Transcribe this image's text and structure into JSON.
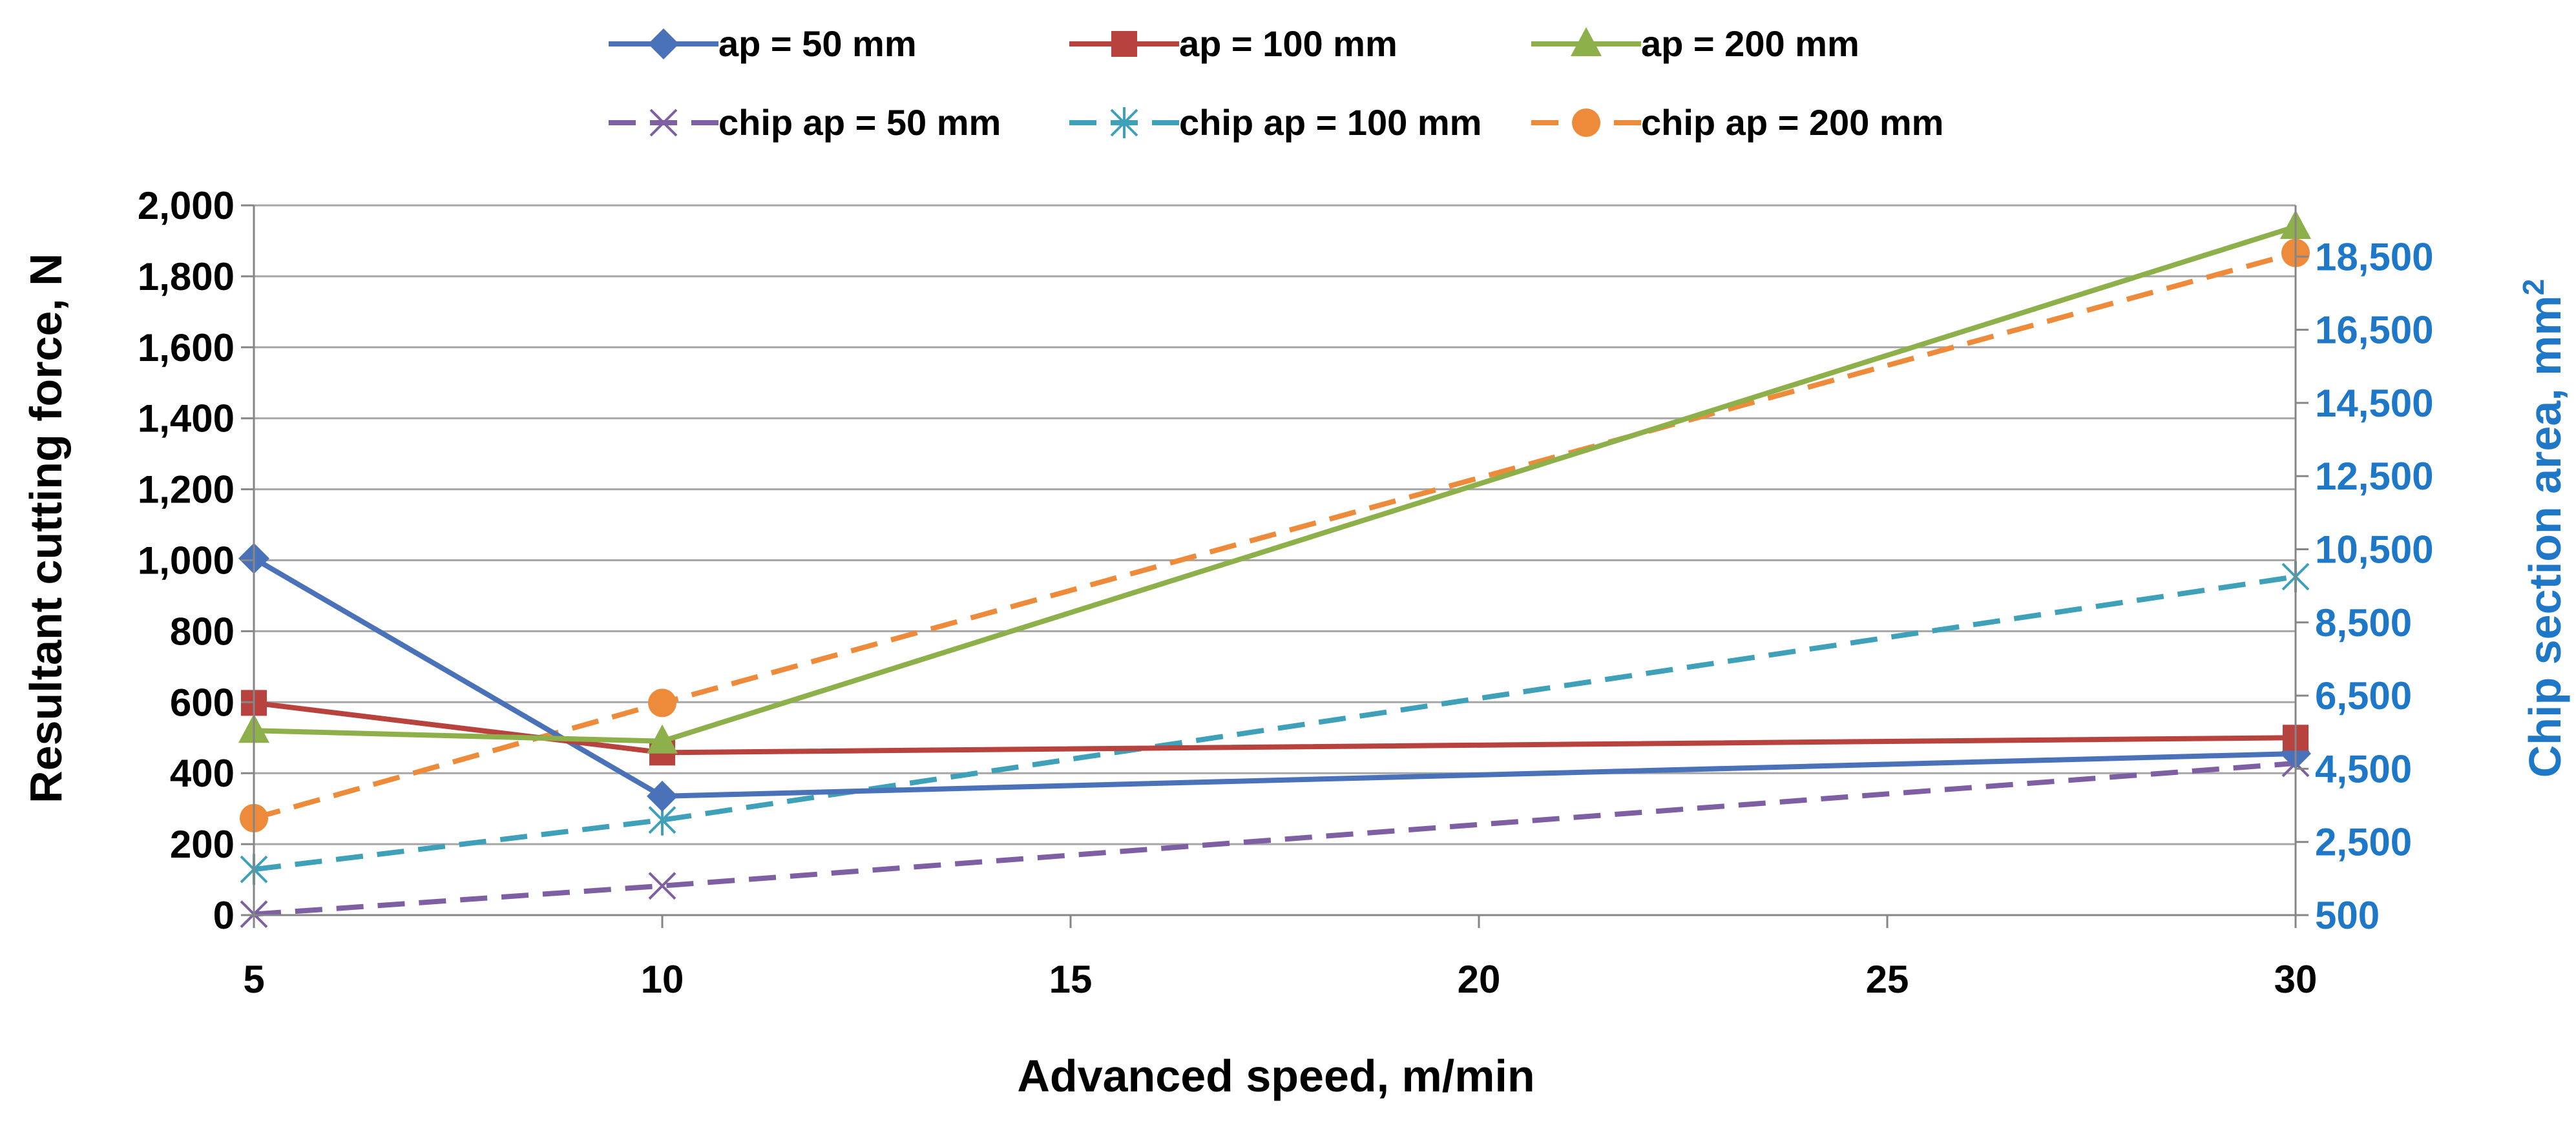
{
  "chart_data": {
    "type": "line",
    "title": "",
    "xlabel": "Advanced speed, m/min",
    "ylabel": "Resultant cutting force, N",
    "y2label": "Chip section area, mm",
    "y2label_superscript": "2",
    "x": [
      5,
      10,
      30
    ],
    "x_ticks": [
      5,
      10,
      15,
      20,
      25,
      30
    ],
    "xlim": [
      5,
      30
    ],
    "ylim": [
      0,
      2000
    ],
    "y_ticks": [
      0,
      200,
      400,
      600,
      800,
      1000,
      1200,
      1400,
      1600,
      1800,
      2000
    ],
    "y_tick_labels": [
      "0",
      "200",
      "400",
      "600",
      "800",
      "1,000",
      "1,200",
      "1,400",
      "1,600",
      "1,800",
      "2,000"
    ],
    "y2lim": [
      500,
      19900
    ],
    "y2_ticks": [
      500,
      2500,
      4500,
      6500,
      8500,
      10500,
      12500,
      14500,
      16500,
      18500
    ],
    "y2_tick_labels": [
      "500",
      "2,500",
      "4,500",
      "6,500",
      "8,500",
      "10,500",
      "12,500",
      "14,500",
      "16,500",
      "18,500"
    ],
    "grid": true,
    "legend_position": "top",
    "series": [
      {
        "name": "ap = 50 mm",
        "axis": "left",
        "values": [
          1005,
          335,
          455
        ],
        "color": "#4A72B8",
        "dash": false,
        "marker": "diamond"
      },
      {
        "name": "ap = 100 mm",
        "axis": "left",
        "values": [
          598,
          458,
          500
        ],
        "color": "#B8423E",
        "dash": false,
        "marker": "square"
      },
      {
        "name": "ap = 200 mm",
        "axis": "left",
        "values": [
          520,
          490,
          1940
        ],
        "color": "#8DB04B",
        "dash": false,
        "marker": "triangle"
      },
      {
        "name": "chip ap = 50 mm",
        "axis": "right",
        "values": [
          525,
          1300,
          4650
        ],
        "color": "#7E5FA3",
        "dash": true,
        "marker": "x"
      },
      {
        "name": "chip ap = 100 mm",
        "axis": "right",
        "values": [
          1750,
          3100,
          9750
        ],
        "color": "#3FA0BA",
        "dash": true,
        "marker": "star"
      },
      {
        "name": "chip ap = 200 mm",
        "axis": "right",
        "values": [
          3150,
          6300,
          18600
        ],
        "color": "#EE8B3A",
        "dash": true,
        "marker": "circle"
      }
    ]
  }
}
